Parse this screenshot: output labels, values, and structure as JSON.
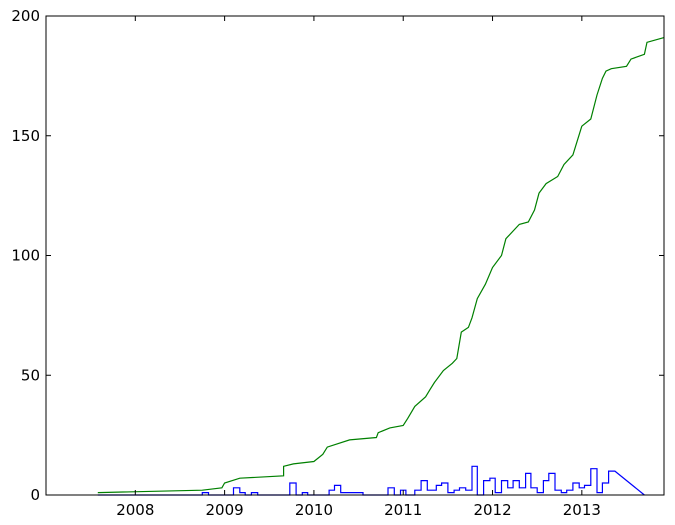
{
  "chart_data": {
    "type": "line",
    "title": "",
    "xlabel": "",
    "ylabel": "",
    "xlim": [
      2007.0,
      2013.92
    ],
    "ylim": [
      0,
      200
    ],
    "grid": false,
    "x_ticks": [
      {
        "value": 2008,
        "label": "2008"
      },
      {
        "value": 2009,
        "label": "2009"
      },
      {
        "value": 2010,
        "label": "2010"
      },
      {
        "value": 2011,
        "label": "2011"
      },
      {
        "value": 2012,
        "label": "2012"
      },
      {
        "value": 2013,
        "label": "2013"
      }
    ],
    "y_ticks": [
      {
        "value": 0,
        "label": "0"
      },
      {
        "value": 50,
        "label": "50"
      },
      {
        "value": 100,
        "label": "100"
      },
      {
        "value": 150,
        "label": "150"
      },
      {
        "value": 200,
        "label": "200"
      }
    ],
    "series": [
      {
        "color": "#0000ff",
        "style": "steps",
        "points": [
          [
            2007.58,
            0
          ],
          [
            2007.67,
            0
          ],
          [
            2008.75,
            0
          ],
          [
            2008.75,
            1
          ],
          [
            2008.82,
            1
          ],
          [
            2008.82,
            0
          ],
          [
            2009.1,
            0
          ],
          [
            2009.1,
            3
          ],
          [
            2009.17,
            3
          ],
          [
            2009.17,
            1
          ],
          [
            2009.23,
            1
          ],
          [
            2009.23,
            0
          ],
          [
            2009.3,
            0
          ],
          [
            2009.3,
            1
          ],
          [
            2009.37,
            1
          ],
          [
            2009.37,
            0
          ],
          [
            2009.73,
            0
          ],
          [
            2009.73,
            5
          ],
          [
            2009.8,
            5
          ],
          [
            2009.8,
            0
          ],
          [
            2009.87,
            0
          ],
          [
            2009.87,
            1
          ],
          [
            2009.93,
            1
          ],
          [
            2009.93,
            0
          ],
          [
            2010.17,
            0
          ],
          [
            2010.17,
            2
          ],
          [
            2010.23,
            2
          ],
          [
            2010.23,
            4
          ],
          [
            2010.3,
            4
          ],
          [
            2010.3,
            1
          ],
          [
            2010.55,
            1
          ],
          [
            2010.55,
            0
          ],
          [
            2010.83,
            0
          ],
          [
            2010.83,
            3
          ],
          [
            2010.9,
            3
          ],
          [
            2010.9,
            0
          ],
          [
            2010.97,
            0
          ],
          [
            2010.97,
            2
          ],
          [
            2011.03,
            2
          ],
          [
            2011.03,
            0
          ],
          [
            2011.13,
            0
          ],
          [
            2011.13,
            2
          ],
          [
            2011.2,
            2
          ],
          [
            2011.2,
            6
          ],
          [
            2011.27,
            6
          ],
          [
            2011.27,
            2
          ],
          [
            2011.37,
            2
          ],
          [
            2011.37,
            4
          ],
          [
            2011.43,
            4
          ],
          [
            2011.43,
            5
          ],
          [
            2011.5,
            5
          ],
          [
            2011.5,
            1
          ],
          [
            2011.57,
            1
          ],
          [
            2011.57,
            2
          ],
          [
            2011.63,
            2
          ],
          [
            2011.63,
            3
          ],
          [
            2011.7,
            3
          ],
          [
            2011.7,
            2
          ],
          [
            2011.77,
            2
          ],
          [
            2011.77,
            12
          ],
          [
            2011.83,
            12
          ],
          [
            2011.83,
            0
          ],
          [
            2011.9,
            0
          ],
          [
            2011.9,
            6
          ],
          [
            2011.97,
            6
          ],
          [
            2011.97,
            7
          ],
          [
            2012.03,
            7
          ],
          [
            2012.03,
            1
          ],
          [
            2012.1,
            1
          ],
          [
            2012.1,
            6
          ],
          [
            2012.17,
            6
          ],
          [
            2012.17,
            3
          ],
          [
            2012.23,
            3
          ],
          [
            2012.23,
            6
          ],
          [
            2012.3,
            6
          ],
          [
            2012.3,
            3
          ],
          [
            2012.37,
            3
          ],
          [
            2012.37,
            9
          ],
          [
            2012.43,
            9
          ],
          [
            2012.43,
            3
          ],
          [
            2012.5,
            3
          ],
          [
            2012.5,
            1
          ],
          [
            2012.57,
            1
          ],
          [
            2012.57,
            6
          ],
          [
            2012.63,
            6
          ],
          [
            2012.63,
            9
          ],
          [
            2012.7,
            9
          ],
          [
            2012.7,
            2
          ],
          [
            2012.77,
            2
          ],
          [
            2012.77,
            1
          ],
          [
            2012.83,
            1
          ],
          [
            2012.83,
            2
          ],
          [
            2012.9,
            2
          ],
          [
            2012.9,
            5
          ],
          [
            2012.97,
            5
          ],
          [
            2012.97,
            3
          ],
          [
            2013.03,
            3
          ],
          [
            2013.03,
            4
          ],
          [
            2013.1,
            4
          ],
          [
            2013.1,
            11
          ],
          [
            2013.17,
            11
          ],
          [
            2013.17,
            1
          ],
          [
            2013.23,
            1
          ],
          [
            2013.23,
            5
          ],
          [
            2013.3,
            5
          ],
          [
            2013.3,
            10
          ],
          [
            2013.37,
            10
          ],
          [
            2013.7,
            0
          ]
        ]
      },
      {
        "color": "#008000",
        "style": "line",
        "points": [
          [
            2007.58,
            1
          ],
          [
            2008.75,
            2
          ],
          [
            2008.97,
            3
          ],
          [
            2009.0,
            5
          ],
          [
            2009.17,
            7
          ],
          [
            2009.66,
            8
          ],
          [
            2009.66,
            12
          ],
          [
            2009.77,
            13
          ],
          [
            2010.0,
            14
          ],
          [
            2010.1,
            17
          ],
          [
            2010.15,
            20
          ],
          [
            2010.4,
            23
          ],
          [
            2010.7,
            24
          ],
          [
            2010.72,
            26
          ],
          [
            2010.85,
            28
          ],
          [
            2011.0,
            29
          ],
          [
            2011.05,
            32
          ],
          [
            2011.13,
            37
          ],
          [
            2011.25,
            41
          ],
          [
            2011.3,
            44
          ],
          [
            2011.35,
            47
          ],
          [
            2011.45,
            52
          ],
          [
            2011.55,
            55
          ],
          [
            2011.6,
            57
          ],
          [
            2011.65,
            68
          ],
          [
            2011.73,
            70
          ],
          [
            2011.77,
            74
          ],
          [
            2011.83,
            82
          ],
          [
            2011.92,
            88
          ],
          [
            2012.0,
            95
          ],
          [
            2012.1,
            100
          ],
          [
            2012.15,
            107
          ],
          [
            2012.3,
            113
          ],
          [
            2012.4,
            114
          ],
          [
            2012.47,
            119
          ],
          [
            2012.52,
            126
          ],
          [
            2012.6,
            130
          ],
          [
            2012.73,
            133
          ],
          [
            2012.8,
            138
          ],
          [
            2012.9,
            142
          ],
          [
            2013.0,
            154
          ],
          [
            2013.1,
            157
          ],
          [
            2013.17,
            167
          ],
          [
            2013.23,
            174
          ],
          [
            2013.27,
            177
          ],
          [
            2013.33,
            178
          ],
          [
            2013.5,
            179
          ],
          [
            2013.55,
            182
          ],
          [
            2013.7,
            184
          ],
          [
            2013.73,
            189
          ],
          [
            2013.92,
            191
          ]
        ]
      }
    ]
  }
}
